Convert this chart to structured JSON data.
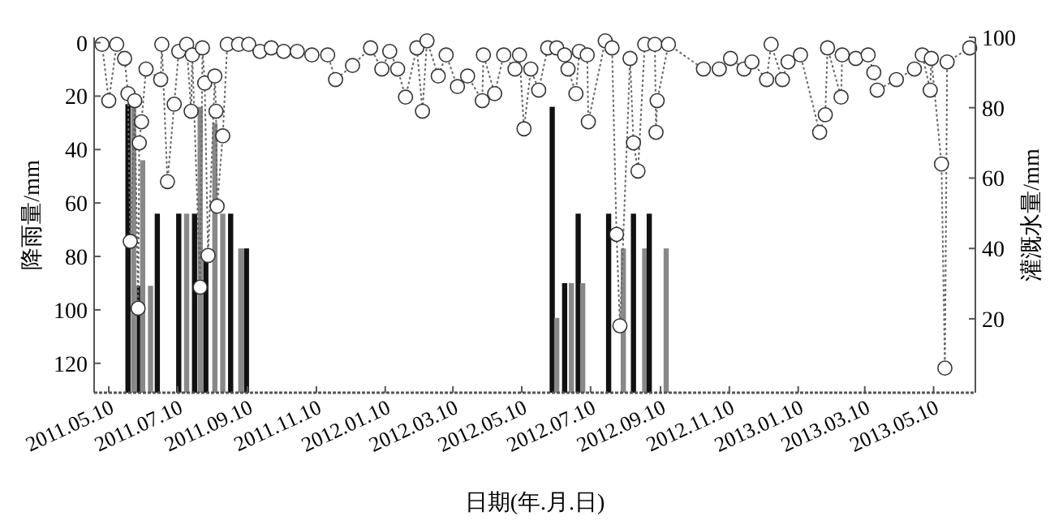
{
  "chart_data": {
    "type": "bar",
    "xlabel": "日期(年.月.日)",
    "ylabel": "降雨量/mm",
    "y2label": "灌溉水量/mm",
    "xlim": [
      "2011-04-27",
      "2013-06-16"
    ],
    "xticks": [
      {
        "value": "2011-05-10",
        "label": "2011.05.10"
      },
      {
        "value": "2011-07-10",
        "label": "2011.07.10"
      },
      {
        "value": "2011-09-10",
        "label": "2011.09.10"
      },
      {
        "value": "2011-11-10",
        "label": "2011.11.10"
      },
      {
        "value": "2012-01-10",
        "label": "2012.01.10"
      },
      {
        "value": "2012-03-10",
        "label": "2012.03.10"
      },
      {
        "value": "2012-05-10",
        "label": "2012.05.10"
      },
      {
        "value": "2012-07-10",
        "label": "2012.07.10"
      },
      {
        "value": "2012-09-10",
        "label": "2012.09.10"
      },
      {
        "value": "2012-11-10",
        "label": "2012.11.10"
      },
      {
        "value": "2013-01-10",
        "label": "2013.01.10"
      },
      {
        "value": "2013-03-10",
        "label": "2013.03.10"
      },
      {
        "value": "2013-05-10",
        "label": "2013.05.10"
      }
    ],
    "ylim": [
      131,
      -2
    ],
    "yticks": [
      0,
      20,
      40,
      60,
      80,
      100,
      120
    ],
    "y2lim": [
      -1,
      100
    ],
    "y2ticks": [
      20,
      40,
      60,
      80,
      100
    ],
    "grid": false,
    "series": [
      {
        "x": [
          "2011-05-27",
          "2011-06-01",
          "2011-06-06",
          "2011-06-09",
          "2011-06-16",
          "2011-06-22",
          "2011-07-11",
          "2011-07-18",
          "2011-07-25",
          "2011-07-30",
          "2011-08-04",
          "2011-08-12",
          "2011-08-19",
          "2011-08-26",
          "2011-09-04",
          "2011-09-09",
          "2012-06-06",
          "2012-06-10",
          "2012-06-17",
          "2012-06-23",
          "2012-06-29",
          "2012-07-03",
          "2012-07-26",
          "2012-08-08",
          "2012-08-17",
          "2012-08-27",
          "2012-08-31",
          "2012-09-15"
        ],
        "base": [
          131,
          131,
          131,
          131,
          131,
          131,
          131,
          131,
          131,
          131,
          131,
          131,
          131,
          131,
          131,
          131,
          131,
          131,
          131,
          131,
          131,
          131,
          131,
          131,
          131,
          131,
          131,
          131
        ],
        "values": [
          -108,
          -107,
          -40,
          -87,
          -40,
          -67,
          -67,
          -67,
          -67,
          -107,
          -50,
          -101,
          -67,
          -67,
          -54,
          -54,
          -107,
          -28,
          -41,
          -41,
          -67,
          -41,
          -67,
          -54,
          -67,
          -54,
          -67,
          -54
        ],
        "colors": [
          "#111111",
          "#888888",
          "#111111",
          "#888888",
          "#888888",
          "#111111",
          "#111111",
          "#888888",
          "#111111",
          "#888888",
          "#111111",
          "#888888",
          "#888888",
          "#111111",
          "#888888",
          "#111111",
          "#111111",
          "#888888",
          "#111111",
          "#888888",
          "#111111",
          "#888888",
          "#111111",
          "#888888",
          "#111111",
          "#888888",
          "#111111",
          "#888888"
        ]
      },
      {
        "type": "line",
        "axis": "y2",
        "color": "#666666",
        "marker": "circle",
        "line_style": "dotted",
        "x": [
          "2011-05-04",
          "2011-05-10",
          "2011-05-17",
          "2011-05-24",
          "2011-05-27",
          "2011-05-29",
          "2011-06-02",
          "2011-06-05",
          "2011-06-06",
          "2011-06-08",
          "2011-06-12",
          "2011-06-25",
          "2011-06-26",
          "2011-07-01",
          "2011-07-07",
          "2011-07-11",
          "2011-07-18",
          "2011-07-22",
          "2011-07-23",
          "2011-07-30",
          "2011-08-01",
          "2011-08-03",
          "2011-08-06",
          "2011-08-12",
          "2011-08-13",
          "2011-08-14",
          "2011-08-19",
          "2011-08-23",
          "2011-09-02",
          "2011-09-11",
          "2011-09-21",
          "2011-10-01",
          "2011-10-12",
          "2011-10-24",
          "2011-11-06",
          "2011-11-20",
          "2011-11-27",
          "2011-12-12",
          "2011-12-28",
          "2012-01-07",
          "2012-01-14",
          "2012-01-21",
          "2012-01-28",
          "2012-02-07",
          "2012-02-12",
          "2012-02-16",
          "2012-02-26",
          "2012-03-04",
          "2012-03-14",
          "2012-03-23",
          "2012-04-05",
          "2012-04-06",
          "2012-04-16",
          "2012-04-24",
          "2012-05-04",
          "2012-05-08",
          "2012-05-12",
          "2012-05-18",
          "2012-05-25",
          "2012-06-02",
          "2012-06-10",
          "2012-06-17",
          "2012-06-20",
          "2012-06-27",
          "2012-06-30",
          "2012-07-07",
          "2012-07-08",
          "2012-07-23",
          "2012-07-29",
          "2012-08-02",
          "2012-08-05",
          "2012-08-14",
          "2012-08-17",
          "2012-08-21",
          "2012-08-27",
          "2012-09-05",
          "2012-09-06",
          "2012-09-07",
          "2012-09-17",
          "2012-10-18",
          "2012-11-01",
          "2012-11-11",
          "2012-11-23",
          "2012-11-30",
          "2012-12-13",
          "2012-12-17",
          "2012-12-27",
          "2013-01-01",
          "2013-01-12",
          "2013-01-29",
          "2013-02-03",
          "2013-02-05",
          "2013-02-17",
          "2013-02-18",
          "2013-03-02",
          "2013-03-13",
          "2013-03-18",
          "2013-03-21",
          "2013-04-07",
          "2013-04-23",
          "2013-04-30",
          "2013-05-07",
          "2013-05-08",
          "2013-05-17",
          "2013-05-20",
          "2013-05-22",
          "2013-06-11"
        ],
        "values": [
          98,
          82,
          98,
          94,
          84,
          42,
          82,
          23,
          70,
          76,
          91,
          88,
          98,
          59,
          81,
          96,
          98,
          79,
          95,
          29,
          97,
          87,
          38,
          89,
          79,
          52,
          72,
          98,
          98,
          98,
          96,
          97,
          96,
          96,
          95,
          95,
          88,
          92,
          97,
          91,
          96,
          91,
          83,
          97,
          79,
          99,
          89,
          95,
          86,
          89,
          82,
          95,
          84,
          95,
          91,
          95,
          74,
          91,
          85,
          97,
          97,
          95,
          91,
          84,
          96,
          95,
          76,
          99,
          97,
          44,
          18,
          94,
          70,
          62,
          98,
          98,
          73,
          82,
          98,
          91,
          91,
          94,
          91,
          93,
          88,
          98,
          88,
          93,
          95,
          73,
          78,
          97,
          83,
          95,
          94,
          95,
          90,
          85,
          88,
          91,
          95,
          85,
          94,
          64,
          6,
          93,
          97
        ]
      }
    ]
  }
}
